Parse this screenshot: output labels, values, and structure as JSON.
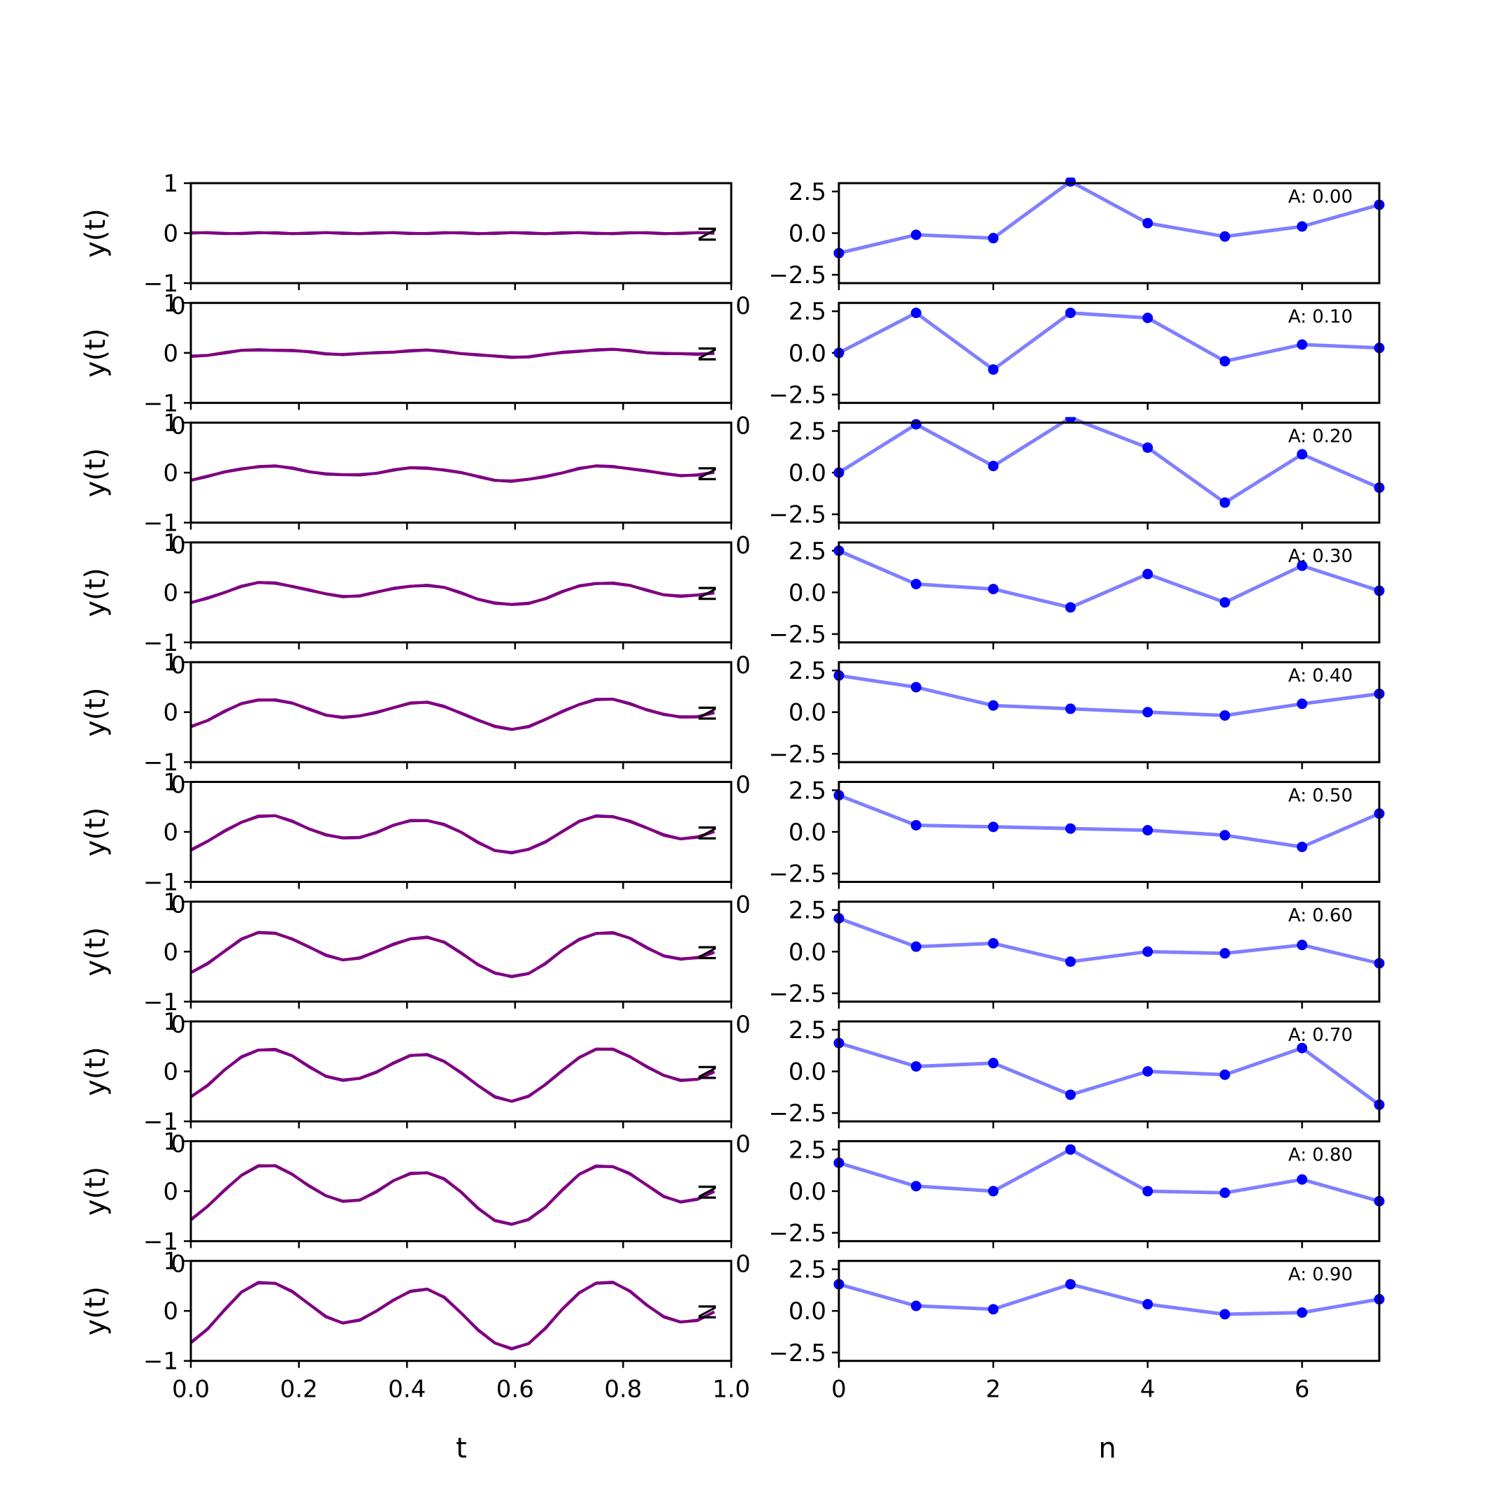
{
  "chart_data": [
    {
      "type": "line",
      "panel": "time-domain",
      "xlabel": "t",
      "ylabel": "y(t)",
      "xlim": [
        0,
        1
      ],
      "ylim": [
        -1,
        1
      ],
      "xticks": [
        "0.0",
        "0.2",
        "0.4",
        "0.6",
        "0.8",
        "1.0"
      ],
      "yticks": [
        "−1",
        "0",
        "1"
      ],
      "overlap_label": "0",
      "corner_label": "N",
      "series_colors": [
        "#0000ff",
        "#ff0000",
        "#800080"
      ],
      "t": [
        0.0,
        0.03125,
        0.0625,
        0.09375,
        0.125,
        0.15625,
        0.1875,
        0.21875,
        0.25,
        0.28125,
        0.3125,
        0.34375,
        0.375,
        0.40625,
        0.4375,
        0.46875,
        0.5,
        0.53125,
        0.5625,
        0.59375,
        0.625,
        0.65625,
        0.6875,
        0.71875,
        0.75,
        0.78125,
        0.8125,
        0.84375,
        0.875,
        0.90625,
        0.9375,
        0.96875
      ],
      "amplitudes": [
        0.0,
        0.1,
        0.2,
        0.3,
        0.4,
        0.5,
        0.6,
        0.7,
        0.8,
        0.9
      ]
    },
    {
      "type": "line",
      "panel": "sample-domain",
      "xlabel": "n",
      "xlim": [
        0,
        7
      ],
      "ylim": [
        -3,
        3
      ],
      "xticks": [
        "0",
        "2",
        "4",
        "6"
      ],
      "yticks": [
        "−2.5",
        "0.0",
        "2.5"
      ],
      "overlap_label": "0",
      "line_color": "#0000ff",
      "line_alpha": 0.5,
      "series": [
        {
          "label": "A: 0.00",
          "values": [
            -1.2,
            -0.1,
            -0.3,
            3.1,
            0.6,
            -0.2,
            0.4,
            1.7
          ]
        },
        {
          "label": "A: 0.10",
          "values": [
            0.0,
            2.4,
            -1.0,
            2.4,
            2.1,
            -0.5,
            0.5,
            0.3
          ]
        },
        {
          "label": "A: 0.20",
          "values": [
            0.0,
            2.9,
            0.4,
            3.3,
            1.5,
            -1.8,
            1.1,
            -0.9
          ]
        },
        {
          "label": "A: 0.30",
          "values": [
            2.5,
            0.5,
            0.2,
            -0.9,
            1.1,
            -0.6,
            1.6,
            0.1
          ]
        },
        {
          "label": "A: 0.40",
          "values": [
            2.2,
            1.5,
            0.4,
            0.2,
            0.0,
            -0.2,
            0.5,
            1.1
          ]
        },
        {
          "label": "A: 0.50",
          "values": [
            2.2,
            0.4,
            0.3,
            0.2,
            0.1,
            -0.2,
            -0.9,
            1.1
          ]
        },
        {
          "label": "A: 0.60",
          "values": [
            2.0,
            0.3,
            0.5,
            -0.6,
            0.0,
            -0.1,
            0.4,
            -0.7
          ]
        },
        {
          "label": "A: 0.70",
          "values": [
            1.7,
            0.3,
            0.5,
            -1.4,
            0.0,
            -0.2,
            1.4,
            -2.0
          ]
        },
        {
          "label": "A: 0.80",
          "values": [
            1.7,
            0.3,
            0.0,
            2.5,
            0.0,
            -0.1,
            0.7,
            -0.6
          ]
        },
        {
          "label": "A: 0.90",
          "values": [
            1.6,
            0.3,
            0.1,
            1.6,
            0.4,
            -0.2,
            -0.1,
            0.7
          ]
        }
      ]
    }
  ]
}
